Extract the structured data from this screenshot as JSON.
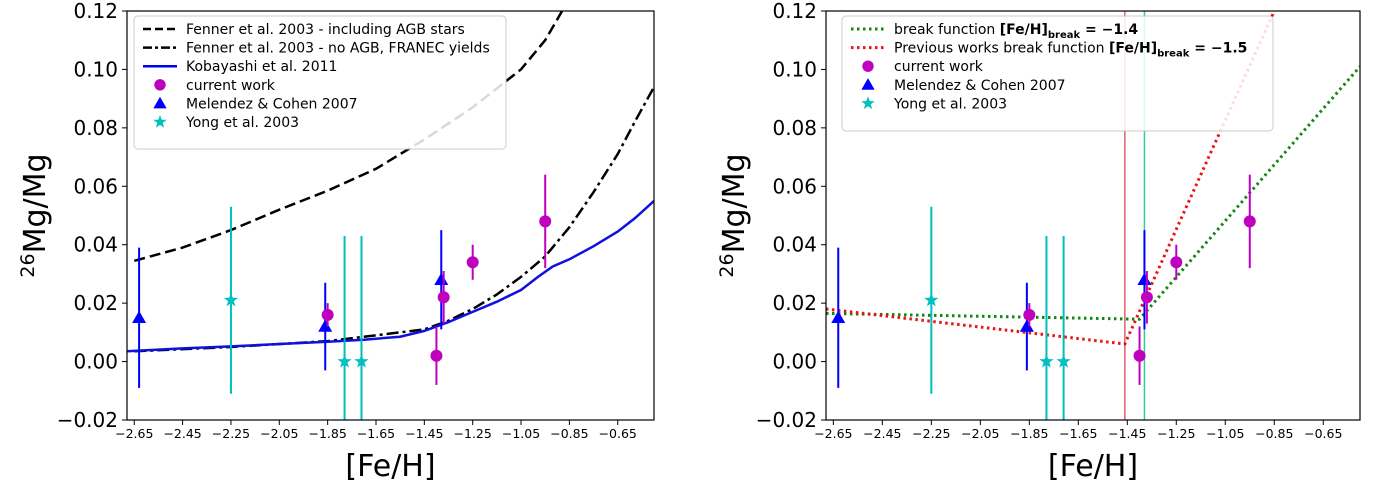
{
  "chart_data": [
    {
      "type": "scatter",
      "xlabel": "[Fe/H]",
      "ylabel_sup": "26",
      "ylabel_main": "Mg/Mg",
      "xlim": [
        -2.68,
        -0.5
      ],
      "ylim": [
        -0.02,
        0.12
      ],
      "xticks": [
        -2.65,
        -2.45,
        -2.25,
        -2.05,
        -1.85,
        -1.65,
        -1.45,
        -1.25,
        -1.05,
        -0.85,
        -0.65
      ],
      "xtick_labels": [
        "−2.65",
        "−2.45",
        "−2.25",
        "−2.05",
        "−1.85",
        "−1.65",
        "−1.45",
        "−1.25",
        "−1.05",
        "−0.85",
        "−0.65"
      ],
      "yticks": [
        -0.02,
        0.0,
        0.02,
        0.04,
        0.06,
        0.08,
        0.1,
        0.12
      ],
      "ytick_labels": [
        "−0.02",
        "0.00",
        "0.02",
        "0.04",
        "0.06",
        "0.08",
        "0.10",
        "0.12"
      ],
      "legend_position": "top-left",
      "legend": [
        {
          "label": "Fenner et al. 2003 - including AGB stars",
          "symbol": "dashed-line",
          "color": "#000000"
        },
        {
          "label": "Fenner et al. 2003 - no AGB, FRANEC yields",
          "symbol": "dashdot-line",
          "color": "#000000"
        },
        {
          "label": "Kobayashi et al. 2011",
          "symbol": "solid-line",
          "color": "#0000ee"
        },
        {
          "label": "current work",
          "symbol": "circle",
          "color": "#bf00bf"
        },
        {
          "label": "Melendez & Cohen 2007",
          "symbol": "triangle",
          "color": "#0000ff"
        },
        {
          "label": "Yong et al. 2003",
          "symbol": "star",
          "color": "#00bfbf"
        }
      ],
      "lines": [
        {
          "style": "dashed",
          "color": "#000000",
          "x": [
            -2.65,
            -2.45,
            -2.25,
            -2.05,
            -1.85,
            -1.65,
            -1.45,
            -1.25,
            -1.05,
            -0.95,
            -0.88
          ],
          "y": [
            0.0345,
            0.039,
            0.045,
            0.052,
            0.0585,
            0.066,
            0.076,
            0.087,
            0.1,
            0.11,
            0.12
          ]
        },
        {
          "style": "dashdot",
          "color": "#000000",
          "x": [
            -2.65,
            -2.25,
            -1.85,
            -1.65,
            -1.45,
            -1.35,
            -1.25,
            -1.15,
            -1.05,
            -0.95,
            -0.85,
            -0.75,
            -0.65,
            -0.58,
            -0.5
          ],
          "y": [
            0.0035,
            0.005,
            0.007,
            0.009,
            0.011,
            0.014,
            0.018,
            0.023,
            0.029,
            0.036,
            0.046,
            0.058,
            0.071,
            0.082,
            0.094
          ]
        },
        {
          "style": "solid",
          "color": "#1010e0",
          "x": [
            -2.68,
            -2.45,
            -2.25,
            -2.05,
            -1.85,
            -1.7,
            -1.55,
            -1.45,
            -1.35,
            -1.25,
            -1.15,
            -1.05,
            -0.98,
            -0.92,
            -0.85,
            -0.75,
            -0.65,
            -0.58,
            -0.5
          ],
          "y": [
            0.0035,
            0.0045,
            0.0052,
            0.006,
            0.0068,
            0.0075,
            0.0085,
            0.0105,
            0.0135,
            0.017,
            0.0205,
            0.0245,
            0.029,
            0.0325,
            0.035,
            0.0395,
            0.0445,
            0.049,
            0.055
          ]
        }
      ],
      "series": [
        {
          "name": "current work",
          "marker": "circle",
          "color": "#bf00bf",
          "points": [
            {
              "x": -1.85,
              "y": 0.016,
              "yerr": 0.004
            },
            {
              "x": -1.4,
              "y": 0.002,
              "yerr": 0.01
            },
            {
              "x": -1.37,
              "y": 0.022,
              "yerr": 0.009
            },
            {
              "x": -1.25,
              "y": 0.034,
              "yerr": 0.006
            },
            {
              "x": -0.95,
              "y": 0.048,
              "yerr": 0.016
            }
          ]
        },
        {
          "name": "Melendez & Cohen 2007",
          "marker": "triangle",
          "color": "#0000ff",
          "points": [
            {
              "x": -2.63,
              "y": 0.015,
              "yerr": 0.024
            },
            {
              "x": -1.86,
              "y": 0.012,
              "yerr": 0.015
            },
            {
              "x": -1.38,
              "y": 0.028,
              "yerr": 0.017
            }
          ]
        },
        {
          "name": "Yong et al. 2003",
          "marker": "star",
          "color": "#00bfbf",
          "points": [
            {
              "x": -2.25,
              "y": 0.021,
              "yerr": 0.032
            },
            {
              "x": -1.78,
              "y": 0.0,
              "yerr": 0.043
            },
            {
              "x": -1.71,
              "y": 0.0,
              "yerr": 0.043
            }
          ]
        }
      ],
      "vlines": []
    },
    {
      "type": "scatter",
      "xlabel": "[Fe/H]",
      "ylabel_sup": "26",
      "ylabel_main": "Mg/Mg",
      "xlim": [
        -2.68,
        -0.5
      ],
      "ylim": [
        -0.02,
        0.12
      ],
      "xticks": [
        -2.65,
        -2.45,
        -2.25,
        -2.05,
        -1.85,
        -1.65,
        -1.45,
        -1.25,
        -1.05,
        -0.85,
        -0.65
      ],
      "xtick_labels": [
        "−2.65",
        "−2.45",
        "−2.25",
        "−2.05",
        "−1.85",
        "−1.65",
        "−1.45",
        "−1.25",
        "−1.05",
        "−0.85",
        "−0.65"
      ],
      "yticks": [
        -0.02,
        0.0,
        0.02,
        0.04,
        0.06,
        0.08,
        0.1,
        0.12
      ],
      "ytick_labels": [
        "−0.02",
        "0.00",
        "0.02",
        "0.04",
        "0.06",
        "0.08",
        "0.10",
        "0.12"
      ],
      "legend_position": "top-left",
      "legend": [
        {
          "label": "break function ",
          "math": "[Fe/H]",
          "math_sub": "break",
          "math_tail": " = −1.4",
          "symbol": "dotted-line",
          "color": "#118811"
        },
        {
          "label": "Previous works break function ",
          "math": "[Fe/H]",
          "math_sub": "break",
          "math_tail": " = −1.5",
          "symbol": "dotted-line",
          "color": "#ee1111"
        },
        {
          "label": "current work",
          "symbol": "circle",
          "color": "#bf00bf"
        },
        {
          "label": "Melendez & Cohen 2007",
          "symbol": "triangle",
          "color": "#0000ff"
        },
        {
          "label": "Yong et al. 2003",
          "symbol": "star",
          "color": "#00bfbf"
        }
      ],
      "lines": [
        {
          "style": "dotted",
          "color": "#118811",
          "x": [
            -2.68,
            -1.4,
            -0.5
          ],
          "y": [
            0.0165,
            0.0145,
            0.101
          ]
        },
        {
          "style": "dotted",
          "color": "#ee1111",
          "x": [
            -2.68,
            -1.46,
            -0.85
          ],
          "y": [
            0.018,
            0.006,
            0.12
          ]
        }
      ],
      "series": [
        {
          "name": "current work",
          "marker": "circle",
          "color": "#bf00bf",
          "points": [
            {
              "x": -1.85,
              "y": 0.016,
              "yerr": 0.004
            },
            {
              "x": -1.4,
              "y": 0.002,
              "yerr": 0.01
            },
            {
              "x": -1.37,
              "y": 0.022,
              "yerr": 0.009
            },
            {
              "x": -1.25,
              "y": 0.034,
              "yerr": 0.006
            },
            {
              "x": -0.95,
              "y": 0.048,
              "yerr": 0.016
            }
          ]
        },
        {
          "name": "Melendez & Cohen 2007",
          "marker": "triangle",
          "color": "#0000ff",
          "points": [
            {
              "x": -2.63,
              "y": 0.015,
              "yerr": 0.024
            },
            {
              "x": -1.86,
              "y": 0.012,
              "yerr": 0.015
            },
            {
              "x": -1.38,
              "y": 0.028,
              "yerr": 0.017
            }
          ]
        },
        {
          "name": "Yong et al. 2003",
          "marker": "star",
          "color": "#00bfbf",
          "points": [
            {
              "x": -2.25,
              "y": 0.021,
              "yerr": 0.032
            },
            {
              "x": -1.78,
              "y": 0.0,
              "yerr": 0.043
            },
            {
              "x": -1.71,
              "y": 0.0,
              "yerr": 0.043
            }
          ]
        }
      ],
      "vlines": [
        {
          "x": -1.46,
          "color": "#e06070"
        },
        {
          "x": -1.38,
          "color": "#33cc99"
        }
      ]
    }
  ]
}
